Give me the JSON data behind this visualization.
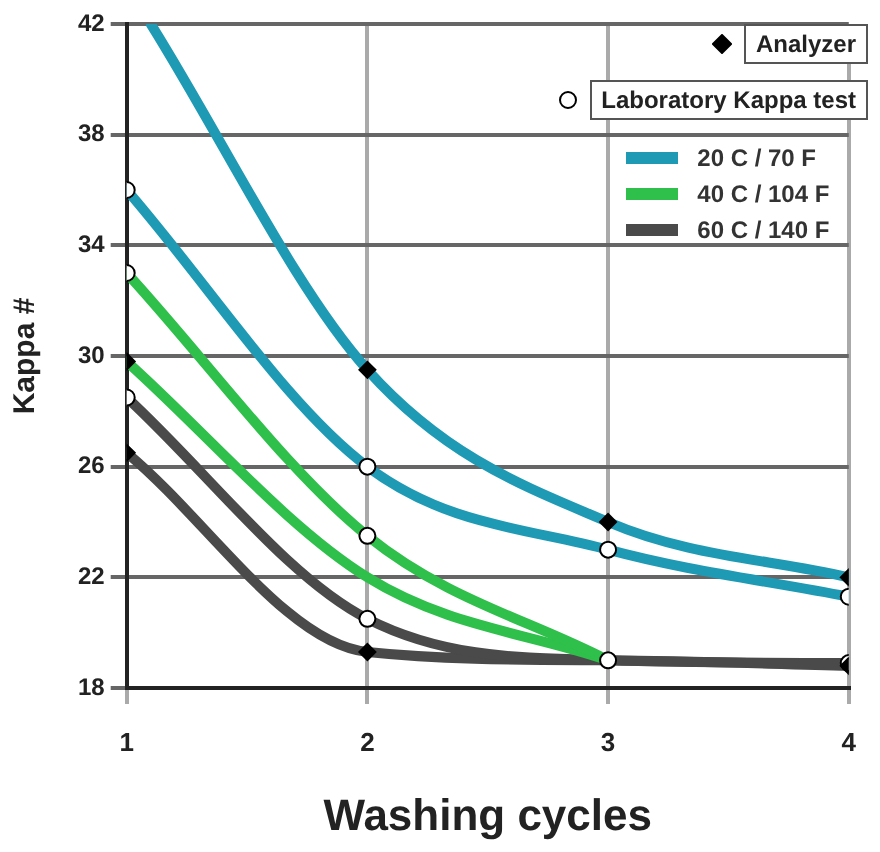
{
  "chart_data": {
    "type": "line",
    "xlabel": "Washing cycles",
    "ylabel": "Kappa #",
    "xlim": [
      1,
      4
    ],
    "xticks": [
      1,
      2,
      3,
      4
    ],
    "ylim": [
      18,
      42
    ],
    "yticks": [
      18,
      22,
      26,
      30,
      34,
      38,
      42
    ],
    "grid": true,
    "legend": "top right",
    "line_style": "solid",
    "series": [
      {
        "name": "20 C / 70 F",
        "color": "#1f9ab5",
        "x": [
          1.1,
          2,
          3,
          4
        ],
        "values": [
          42,
          29.5,
          24,
          22
        ],
        "marker": "none"
      },
      {
        "color": "#1f9ab5",
        "x": [
          1,
          2,
          3,
          4
        ],
        "values": [
          36,
          26,
          23,
          21.3
        ],
        "marker": "none"
      },
      {
        "name": "40 C / 104 F",
        "color": "#2ec04a",
        "x": [
          1,
          2,
          3
        ],
        "values": [
          33,
          23.5,
          19
        ],
        "marker": "none"
      },
      {
        "color": "#2ec04a",
        "x": [
          1,
          2,
          3
        ],
        "values": [
          29.8,
          22,
          19
        ],
        "marker": "none"
      },
      {
        "name": "60 C / 140 F",
        "color": "#4a4a4a",
        "x": [
          1,
          2,
          3,
          4
        ],
        "values": [
          28.5,
          20.5,
          19,
          18.9
        ],
        "marker": "none"
      },
      {
        "color": "#4a4a4a",
        "x": [
          1,
          2,
          3,
          4
        ],
        "values": [
          26.5,
          19.3,
          19,
          18.8
        ],
        "marker": "none"
      },
      {
        "name": "Analyzer",
        "type": "scatter",
        "marker": "diamond",
        "color": "#000000",
        "x": [
          2,
          3,
          4,
          1,
          1,
          2,
          4
        ],
        "values": [
          29.5,
          24,
          22,
          29.8,
          26.5,
          19.3,
          18.8
        ]
      },
      {
        "name": "Laboratory Kappa test",
        "type": "scatter",
        "marker": "circle",
        "color": "#ffffff",
        "x": [
          1,
          2,
          3,
          4,
          1,
          2,
          1,
          2,
          3,
          4
        ],
        "values": [
          36,
          26,
          23,
          21.3,
          33,
          23.5,
          28.5,
          20.5,
          19,
          18.9
        ]
      }
    ]
  }
}
